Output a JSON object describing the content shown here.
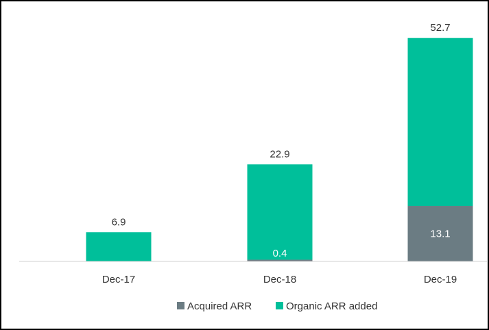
{
  "chart_data": {
    "type": "bar",
    "stacked": true,
    "categories": [
      "Dec-17",
      "Dec-18",
      "Dec-19"
    ],
    "series": [
      {
        "name": "Acquired ARR",
        "values": [
          0,
          0.4,
          13.1
        ],
        "labels": [
          "",
          "0.4",
          "13.1"
        ],
        "color": "#6b7c83"
      },
      {
        "name": "Organic ARR added",
        "values": [
          6.9,
          22.5,
          39.6
        ],
        "color": "#00bf9a"
      }
    ],
    "totals": [
      "6.9",
      "22.9",
      "52.7"
    ],
    "ylim": [
      0,
      55
    ],
    "legend_position": "bottom",
    "grid": false,
    "axis_color": "#d0d0d0"
  }
}
